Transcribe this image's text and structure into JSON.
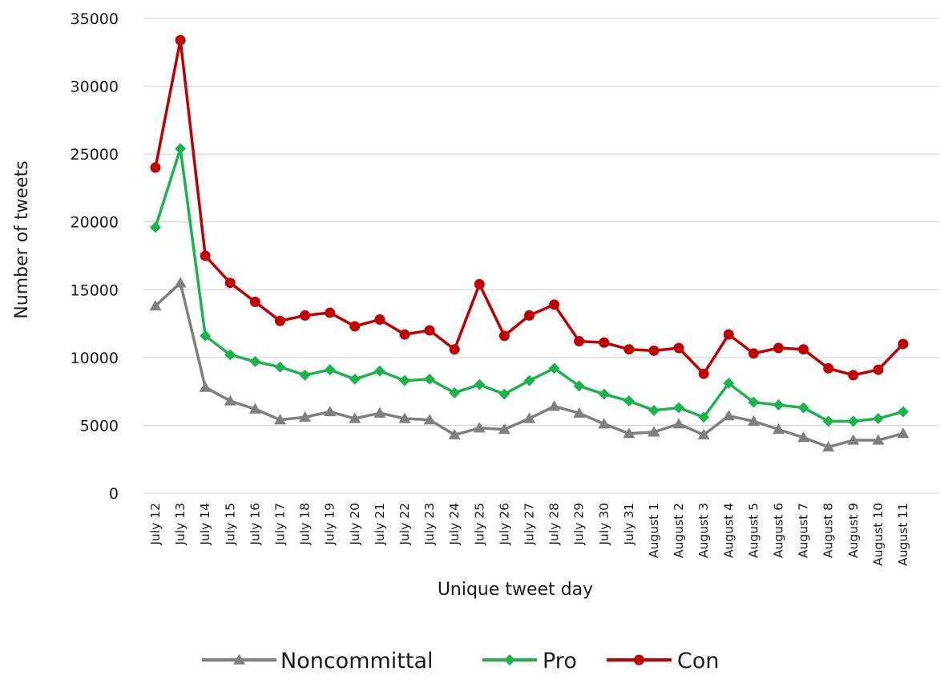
{
  "chart_data": {
    "type": "line",
    "title": "",
    "xlabel": "Unique tweet day",
    "ylabel": "Number of tweets",
    "ylim": [
      0,
      35000
    ],
    "yticks": [
      0,
      5000,
      10000,
      15000,
      20000,
      25000,
      30000,
      35000
    ],
    "grid": "horizontal",
    "legend_position": "bottom",
    "categories": [
      "July 12",
      "July 13",
      "July 14",
      "July 15",
      "July 16",
      "July 17",
      "July 18",
      "July 19",
      "July 20",
      "July 21",
      "July 22",
      "July 23",
      "July 24",
      "July 25",
      "July 26",
      "July 27",
      "July 28",
      "July 29",
      "July 30",
      "July 31",
      "August 1",
      "August 2",
      "August 3",
      "August 4",
      "August 5",
      "August 6",
      "August 7",
      "August 8",
      "August 9",
      "August 10",
      "August 11"
    ],
    "series": [
      {
        "name": "Noncommittal",
        "color": "#7f7f7f",
        "marker": "triangle",
        "values": [
          13800,
          15500,
          7800,
          6800,
          6200,
          5400,
          5600,
          6000,
          5500,
          5900,
          5500,
          5400,
          4300,
          4800,
          4700,
          5500,
          6400,
          5900,
          5100,
          4400,
          4500,
          5100,
          4300,
          5700,
          5300,
          4700,
          4100,
          3400,
          3900,
          3900,
          4400
        ]
      },
      {
        "name": "Pro",
        "color": "#1cb34c",
        "marker": "diamond",
        "values": [
          19600,
          25400,
          11600,
          10200,
          9700,
          9300,
          8700,
          9100,
          8400,
          9000,
          8300,
          8400,
          7400,
          8000,
          7300,
          8300,
          9200,
          7900,
          7300,
          6800,
          6100,
          6300,
          5600,
          8100,
          6700,
          6500,
          6300,
          5300,
          5300,
          5500,
          6000
        ]
      },
      {
        "name": "Con",
        "color": "#c00000",
        "marker": "circle",
        "values": [
          24000,
          33400,
          17500,
          15500,
          14100,
          12700,
          13100,
          13300,
          12300,
          12800,
          11700,
          12000,
          10600,
          15400,
          11600,
          13100,
          13900,
          11200,
          11100,
          10600,
          10500,
          10700,
          8800,
          11700,
          10300,
          10700,
          10600,
          9200,
          8700,
          9100,
          11000
        ]
      }
    ]
  }
}
